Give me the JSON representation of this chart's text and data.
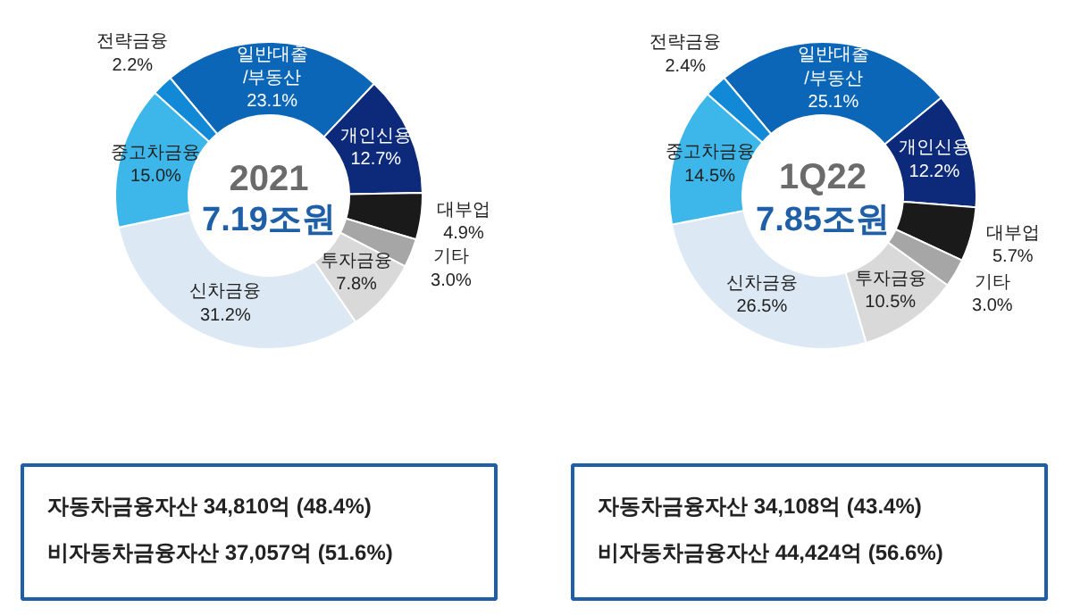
{
  "chart_data": [
    {
      "type": "donut",
      "title": "2021",
      "subtitle": "7.19조원",
      "categories": [
        "일반대출\n/부동산",
        "개인신용",
        "대부업",
        "기타",
        "투자금융",
        "신차금융",
        "중고차금융",
        "전략금융"
      ],
      "values": [
        23.1,
        12.7,
        4.9,
        3.0,
        7.8,
        31.2,
        15.0,
        2.2
      ],
      "value_labels": [
        "23.1%",
        "12.7%",
        "4.9%",
        "3.0%",
        "7.8%",
        "31.2%",
        "15.0%",
        "2.2%"
      ],
      "colors": [
        "#0b66b8",
        "#0d2a7a",
        "#1a1a1a",
        "#a6a6a6",
        "#d9d9d9",
        "#dce8f3",
        "#3db7ea",
        "#1289d6"
      ],
      "annotations": [
        "자동차금융자산   34,810억   (48.4%)",
        "비자동차금융자산   37,057억   (51.6%)"
      ]
    },
    {
      "type": "donut",
      "title": "1Q22",
      "subtitle": "7.85조원",
      "categories": [
        "일반대출\n/부동산",
        "개인신용",
        "대부업",
        "기타",
        "투자금융",
        "신차금융",
        "중고차금융",
        "전략금융"
      ],
      "values": [
        25.1,
        12.2,
        5.7,
        3.0,
        10.5,
        26.5,
        14.5,
        2.4
      ],
      "value_labels": [
        "25.1%",
        "12.2%",
        "5.7%",
        "3.0%",
        "10.5%",
        "26.5%",
        "14.5%",
        "2.4%"
      ],
      "colors": [
        "#0b66b8",
        "#0d2a7a",
        "#1a1a1a",
        "#a6a6a6",
        "#d9d9d9",
        "#dce8f3",
        "#3db7ea",
        "#1289d6"
      ],
      "annotations": [
        "자동차금융자산   34,108억   (43.4%)",
        "비자동차금융자산   44,424억   (56.6%)"
      ]
    }
  ]
}
